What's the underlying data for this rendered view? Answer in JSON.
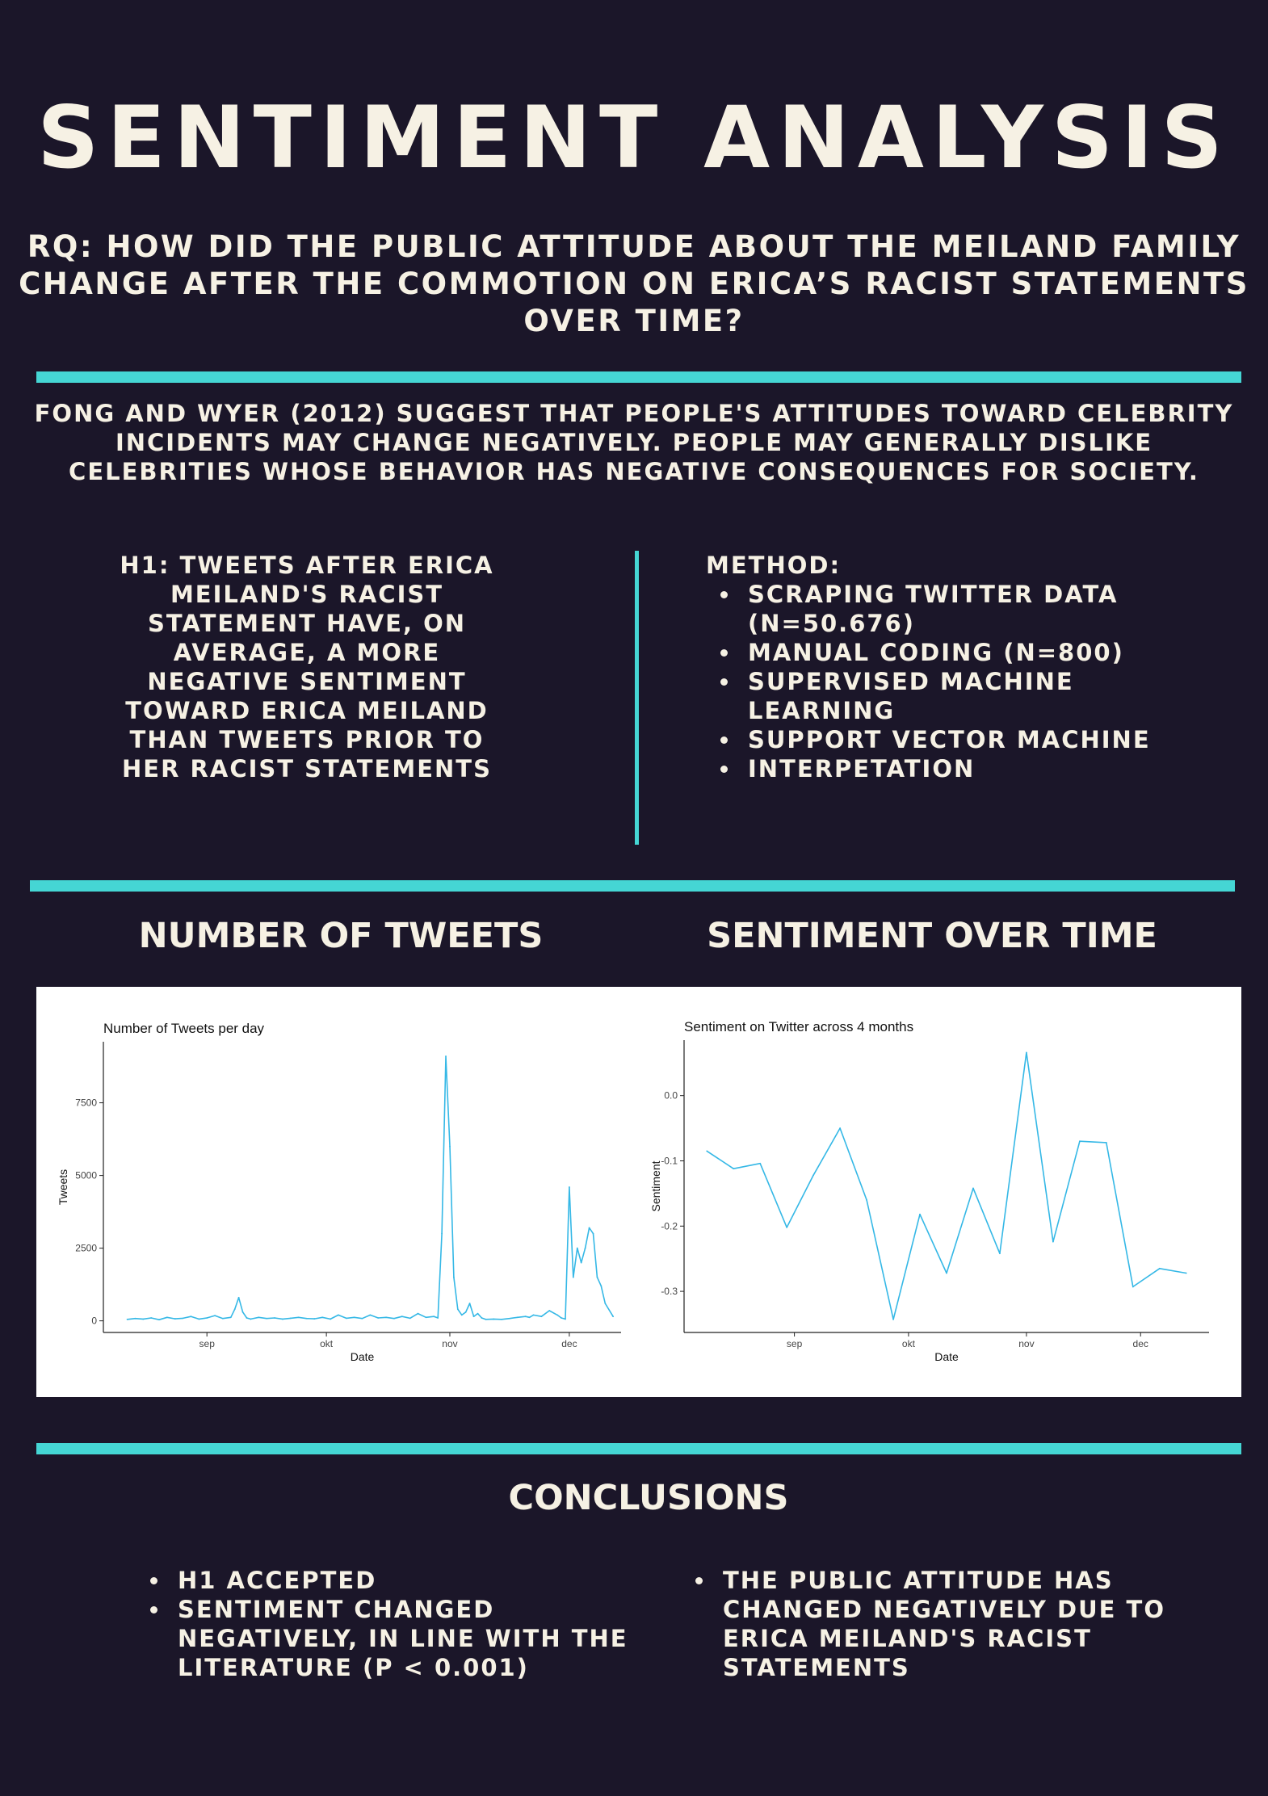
{
  "poster": {
    "title": "SENTIMENT ANALYSIS",
    "rq_lines": [
      "RQ: HOW DID THE PUBLIC ATTITUDE ABOUT THE MEILAND FAMILY",
      "CHANGE AFTER THE COMMOTION ON ERICA’S RACIST STATEMENTS",
      "OVER TIME?"
    ],
    "intro_lines": [
      "FONG AND WYER (2012) SUGGEST THAT PEOPLE'S ATTITUDES TOWARD CELEBRITY",
      "INCIDENTS MAY CHANGE NEGATIVELY. PEOPLE MAY GENERALLY DISLIKE",
      "CELEBRITIES WHOSE BEHAVIOR HAS NEGATIVE CONSEQUENCES FOR SOCIETY."
    ],
    "hypothesis_lines": [
      "H1: TWEETS AFTER ERICA",
      "MEILAND'S RACIST",
      "STATEMENT HAVE, ON",
      "AVERAGE, A MORE",
      "NEGATIVE SENTIMENT",
      "TOWARD ERICA MEILAND",
      "THAN TWEETS PRIOR TO",
      "HER RACIST STATEMENTS"
    ],
    "method": {
      "heading": "METHOD:",
      "items": [
        [
          "SCRAPING TWITTER DATA",
          "(N=50.676)"
        ],
        [
          "MANUAL CODING (N=800)"
        ],
        [
          "SUPERVISED MACHINE",
          "LEARNING"
        ],
        [
          "SUPPORT VECTOR MACHINE"
        ],
        [
          "INTERPETATION"
        ]
      ]
    },
    "section_tweets": "NUMBER OF TWEETS",
    "section_sentiment": "SENTIMENT OVER TIME",
    "conclusions": {
      "heading": "CONCLUSIONS",
      "left": [
        [
          "H1 ACCEPTED"
        ],
        [
          "SENTIMENT  CHANGED",
          "NEGATIVELY, IN LINE WITH THE",
          "LITERATURE (P < 0.001)"
        ]
      ],
      "right": [
        [
          "THE PUBLIC ATTITUDE HAS",
          "CHANGED NEGATIVELY DUE TO",
          "ERICA MEILAND'S RACIST",
          "STATEMENTS"
        ]
      ]
    }
  },
  "colors": {
    "background": "#1b1629",
    "text": "#f6f1e4",
    "accent": "#45d6d4",
    "line": "#35b8e6"
  },
  "chart_data": [
    {
      "type": "line",
      "title": "Number of Tweets per day",
      "xlabel": "Date",
      "ylabel": "Tweets",
      "x_type": "date",
      "x_ticks": [
        {
          "date": "2021-09-01",
          "label": "sep"
        },
        {
          "date": "2021-10-01",
          "label": "okt"
        },
        {
          "date": "2021-11-01",
          "label": "nov"
        },
        {
          "date": "2021-12-01",
          "label": "dec"
        }
      ],
      "y_ticks": [
        0,
        2500,
        5000,
        7500
      ],
      "xlim": [
        "2021-08-06",
        "2021-12-14"
      ],
      "ylim": [
        -400,
        9600
      ],
      "grid": false,
      "series": [
        {
          "x": [
            "2021-08-12",
            "2021-08-14",
            "2021-08-16",
            "2021-08-18",
            "2021-08-20",
            "2021-08-22",
            "2021-08-24",
            "2021-08-26",
            "2021-08-28",
            "2021-08-30",
            "2021-09-01",
            "2021-09-03",
            "2021-09-05",
            "2021-09-07",
            "2021-09-08",
            "2021-09-09",
            "2021-09-10",
            "2021-09-11",
            "2021-09-12",
            "2021-09-14",
            "2021-09-16",
            "2021-09-18",
            "2021-09-20",
            "2021-09-22",
            "2021-09-24",
            "2021-09-26",
            "2021-09-28",
            "2021-09-30",
            "2021-10-02",
            "2021-10-04",
            "2021-10-06",
            "2021-10-08",
            "2021-10-10",
            "2021-10-12",
            "2021-10-14",
            "2021-10-16",
            "2021-10-18",
            "2021-10-20",
            "2021-10-22",
            "2021-10-24",
            "2021-10-26",
            "2021-10-28",
            "2021-10-29",
            "2021-10-30",
            "2021-10-31",
            "2021-11-01",
            "2021-11-02",
            "2021-11-03",
            "2021-11-04",
            "2021-11-05",
            "2021-11-06",
            "2021-11-07",
            "2021-11-08",
            "2021-11-09",
            "2021-11-10",
            "2021-11-12",
            "2021-11-14",
            "2021-11-16",
            "2021-11-18",
            "2021-11-20",
            "2021-11-21",
            "2021-11-22",
            "2021-11-24",
            "2021-11-26",
            "2021-11-28",
            "2021-11-29",
            "2021-11-30",
            "2021-12-01",
            "2021-12-02",
            "2021-12-03",
            "2021-12-04",
            "2021-12-05",
            "2021-12-06",
            "2021-12-07",
            "2021-12-08",
            "2021-12-09",
            "2021-12-10",
            "2021-12-12"
          ],
          "values": [
            50,
            80,
            60,
            100,
            40,
            120,
            70,
            90,
            150,
            60,
            100,
            180,
            80,
            120,
            400,
            800,
            300,
            100,
            60,
            120,
            80,
            100,
            60,
            90,
            120,
            80,
            70,
            120,
            60,
            200,
            90,
            120,
            80,
            200,
            100,
            120,
            80,
            150,
            90,
            250,
            120,
            150,
            100,
            3000,
            9100,
            6000,
            1500,
            400,
            200,
            300,
            600,
            150,
            250,
            100,
            50,
            60,
            50,
            80,
            120,
            150,
            120,
            200,
            150,
            350,
            200,
            100,
            60,
            4600,
            1500,
            2500,
            2000,
            2500,
            3200,
            3000,
            1500,
            1200,
            600,
            150
          ]
        }
      ]
    },
    {
      "type": "line",
      "title": "Sentiment on Twitter across 4 months",
      "xlabel": "Date",
      "ylabel": "Sentiment",
      "x_type": "date",
      "x_ticks": [
        {
          "date": "2021-09-01",
          "label": "sep"
        },
        {
          "date": "2021-10-01",
          "label": "okt"
        },
        {
          "date": "2021-11-01",
          "label": "nov"
        },
        {
          "date": "2021-12-01",
          "label": "dec"
        }
      ],
      "y_ticks": [
        0.0,
        -0.1,
        -0.2,
        -0.3
      ],
      "y_tick_labels": [
        "0.0",
        "-0.1",
        "-0.2",
        "-0.3"
      ],
      "xlim": [
        "2021-08-03",
        "2021-12-19"
      ],
      "ylim": [
        -0.363,
        0.085
      ],
      "grid": false,
      "series": [
        {
          "x": [
            "2021-08-09",
            "2021-08-16",
            "2021-08-23",
            "2021-08-30",
            "2021-09-06",
            "2021-09-13",
            "2021-09-20",
            "2021-09-27",
            "2021-10-04",
            "2021-10-11",
            "2021-10-18",
            "2021-10-25",
            "2021-11-01",
            "2021-11-08",
            "2021-11-15",
            "2021-11-22",
            "2021-11-29",
            "2021-12-06",
            "2021-12-13"
          ],
          "values": [
            -0.085,
            -0.112,
            -0.104,
            -0.202,
            -0.122,
            -0.05,
            -0.16,
            -0.343,
            -0.182,
            -0.272,
            -0.142,
            -0.242,
            0.066,
            -0.224,
            -0.07,
            -0.072,
            -0.293,
            -0.265,
            -0.272
          ]
        }
      ]
    }
  ]
}
